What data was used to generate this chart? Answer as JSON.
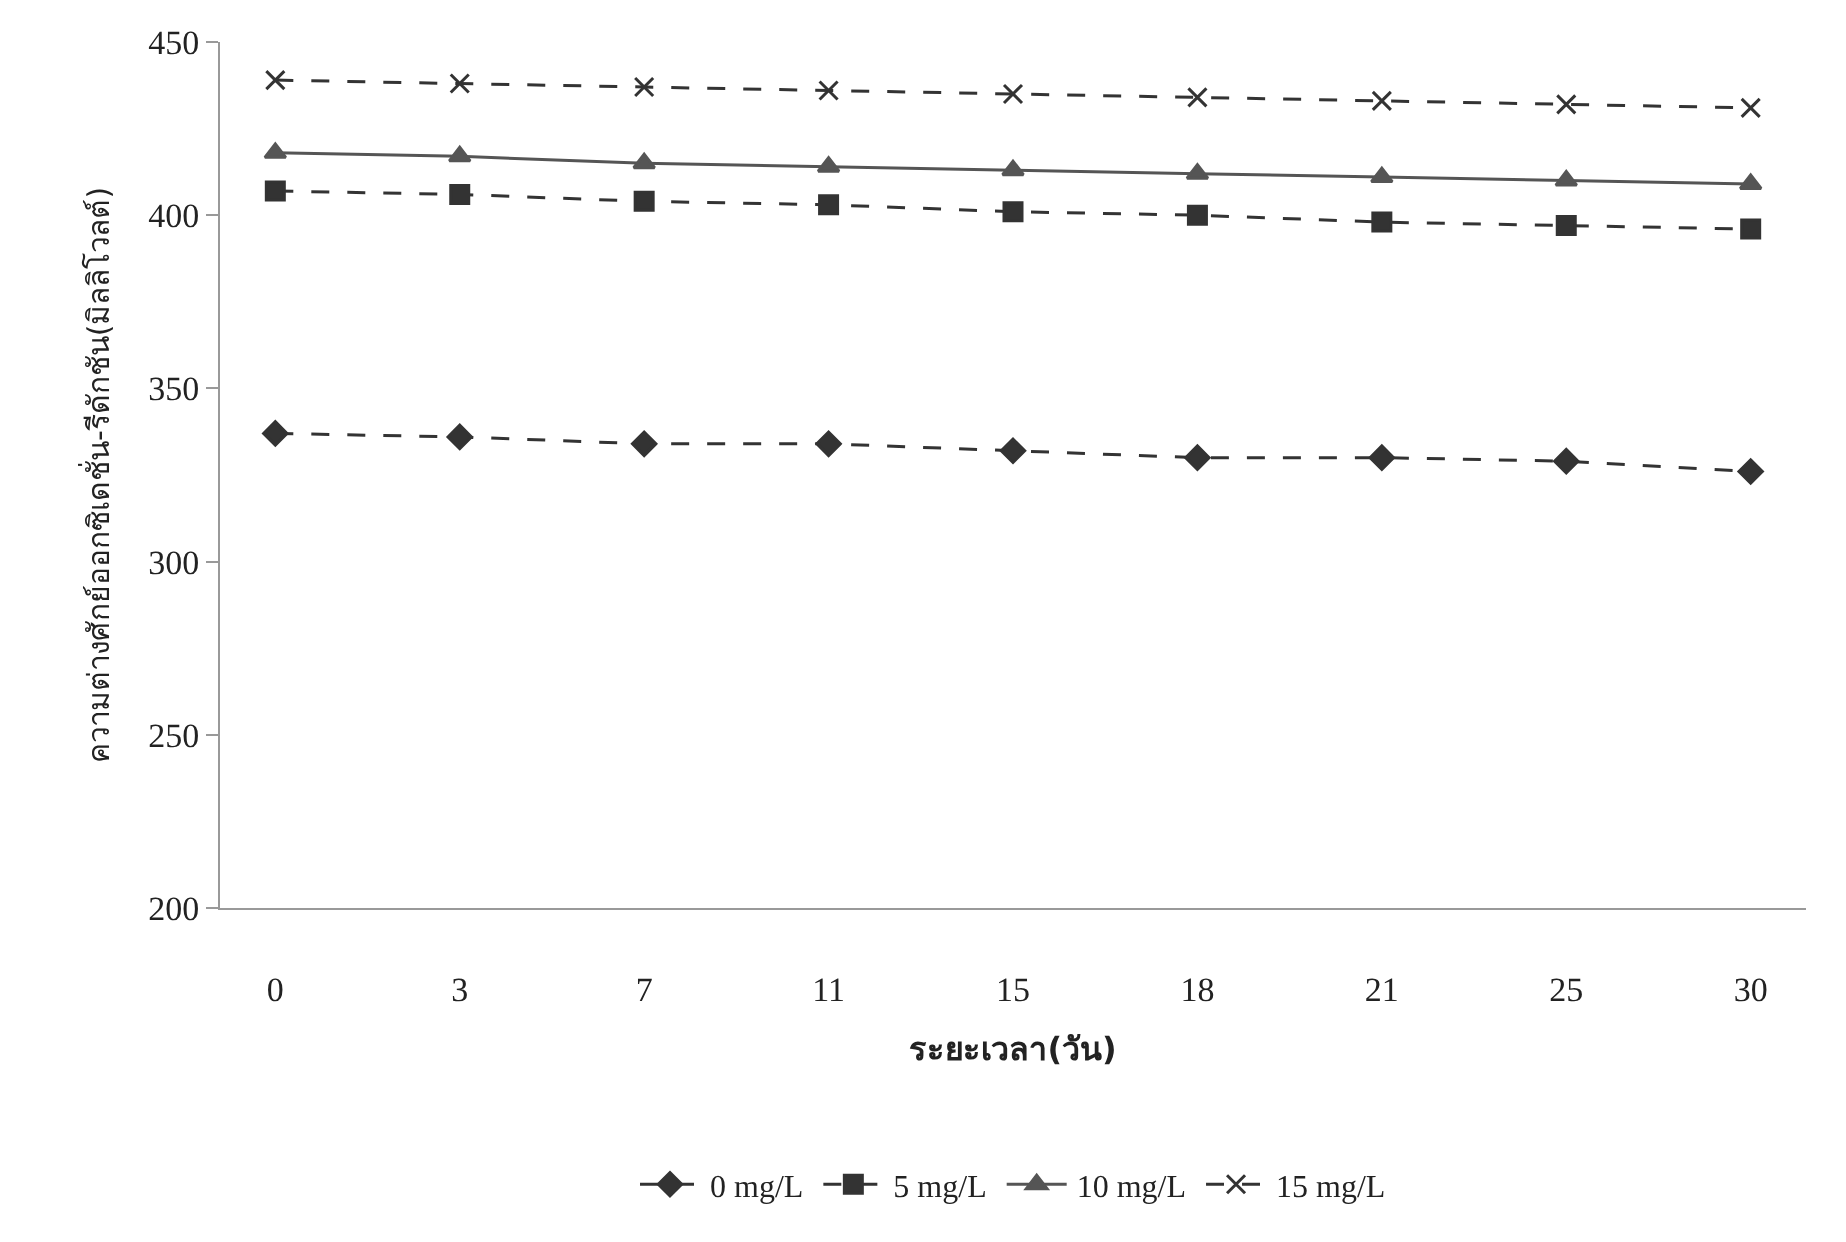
{
  "chart_data": {
    "type": "line",
    "xlabel": "ระยะเวลา(วัน)",
    "ylabel": "ความต่างศักย์ออกซิเดชั่น-รีดักชัน(มิลลิโวลต์)",
    "categories": [
      "0",
      "3",
      "7",
      "11",
      "15",
      "18",
      "21",
      "25",
      "30"
    ],
    "series": [
      {
        "name": "0 mg/L",
        "color": "#333333",
        "marker": "diamond",
        "line_style": "dashed",
        "values": [
          337,
          336,
          334,
          334,
          332,
          330,
          330,
          329,
          326
        ]
      },
      {
        "name": "5 mg/L",
        "color": "#333333",
        "marker": "square",
        "line_style": "dashed",
        "values": [
          407,
          406,
          404,
          403,
          401,
          400,
          398,
          397,
          396
        ]
      },
      {
        "name": "10 mg/L",
        "color": "#555555",
        "marker": "triangle",
        "line_style": "solid",
        "values": [
          418,
          417,
          415,
          414,
          413,
          412,
          411,
          410,
          409
        ]
      },
      {
        "name": "15 mg/L",
        "color": "#333333",
        "marker": "cross",
        "line_style": "dashed",
        "values": [
          439,
          438,
          437,
          436,
          435,
          434,
          433,
          432,
          431
        ]
      }
    ],
    "ylim": [
      200,
      450
    ],
    "yticks": [
      200,
      250,
      300,
      350,
      400,
      450
    ],
    "grid": false,
    "legend": "bottom"
  }
}
